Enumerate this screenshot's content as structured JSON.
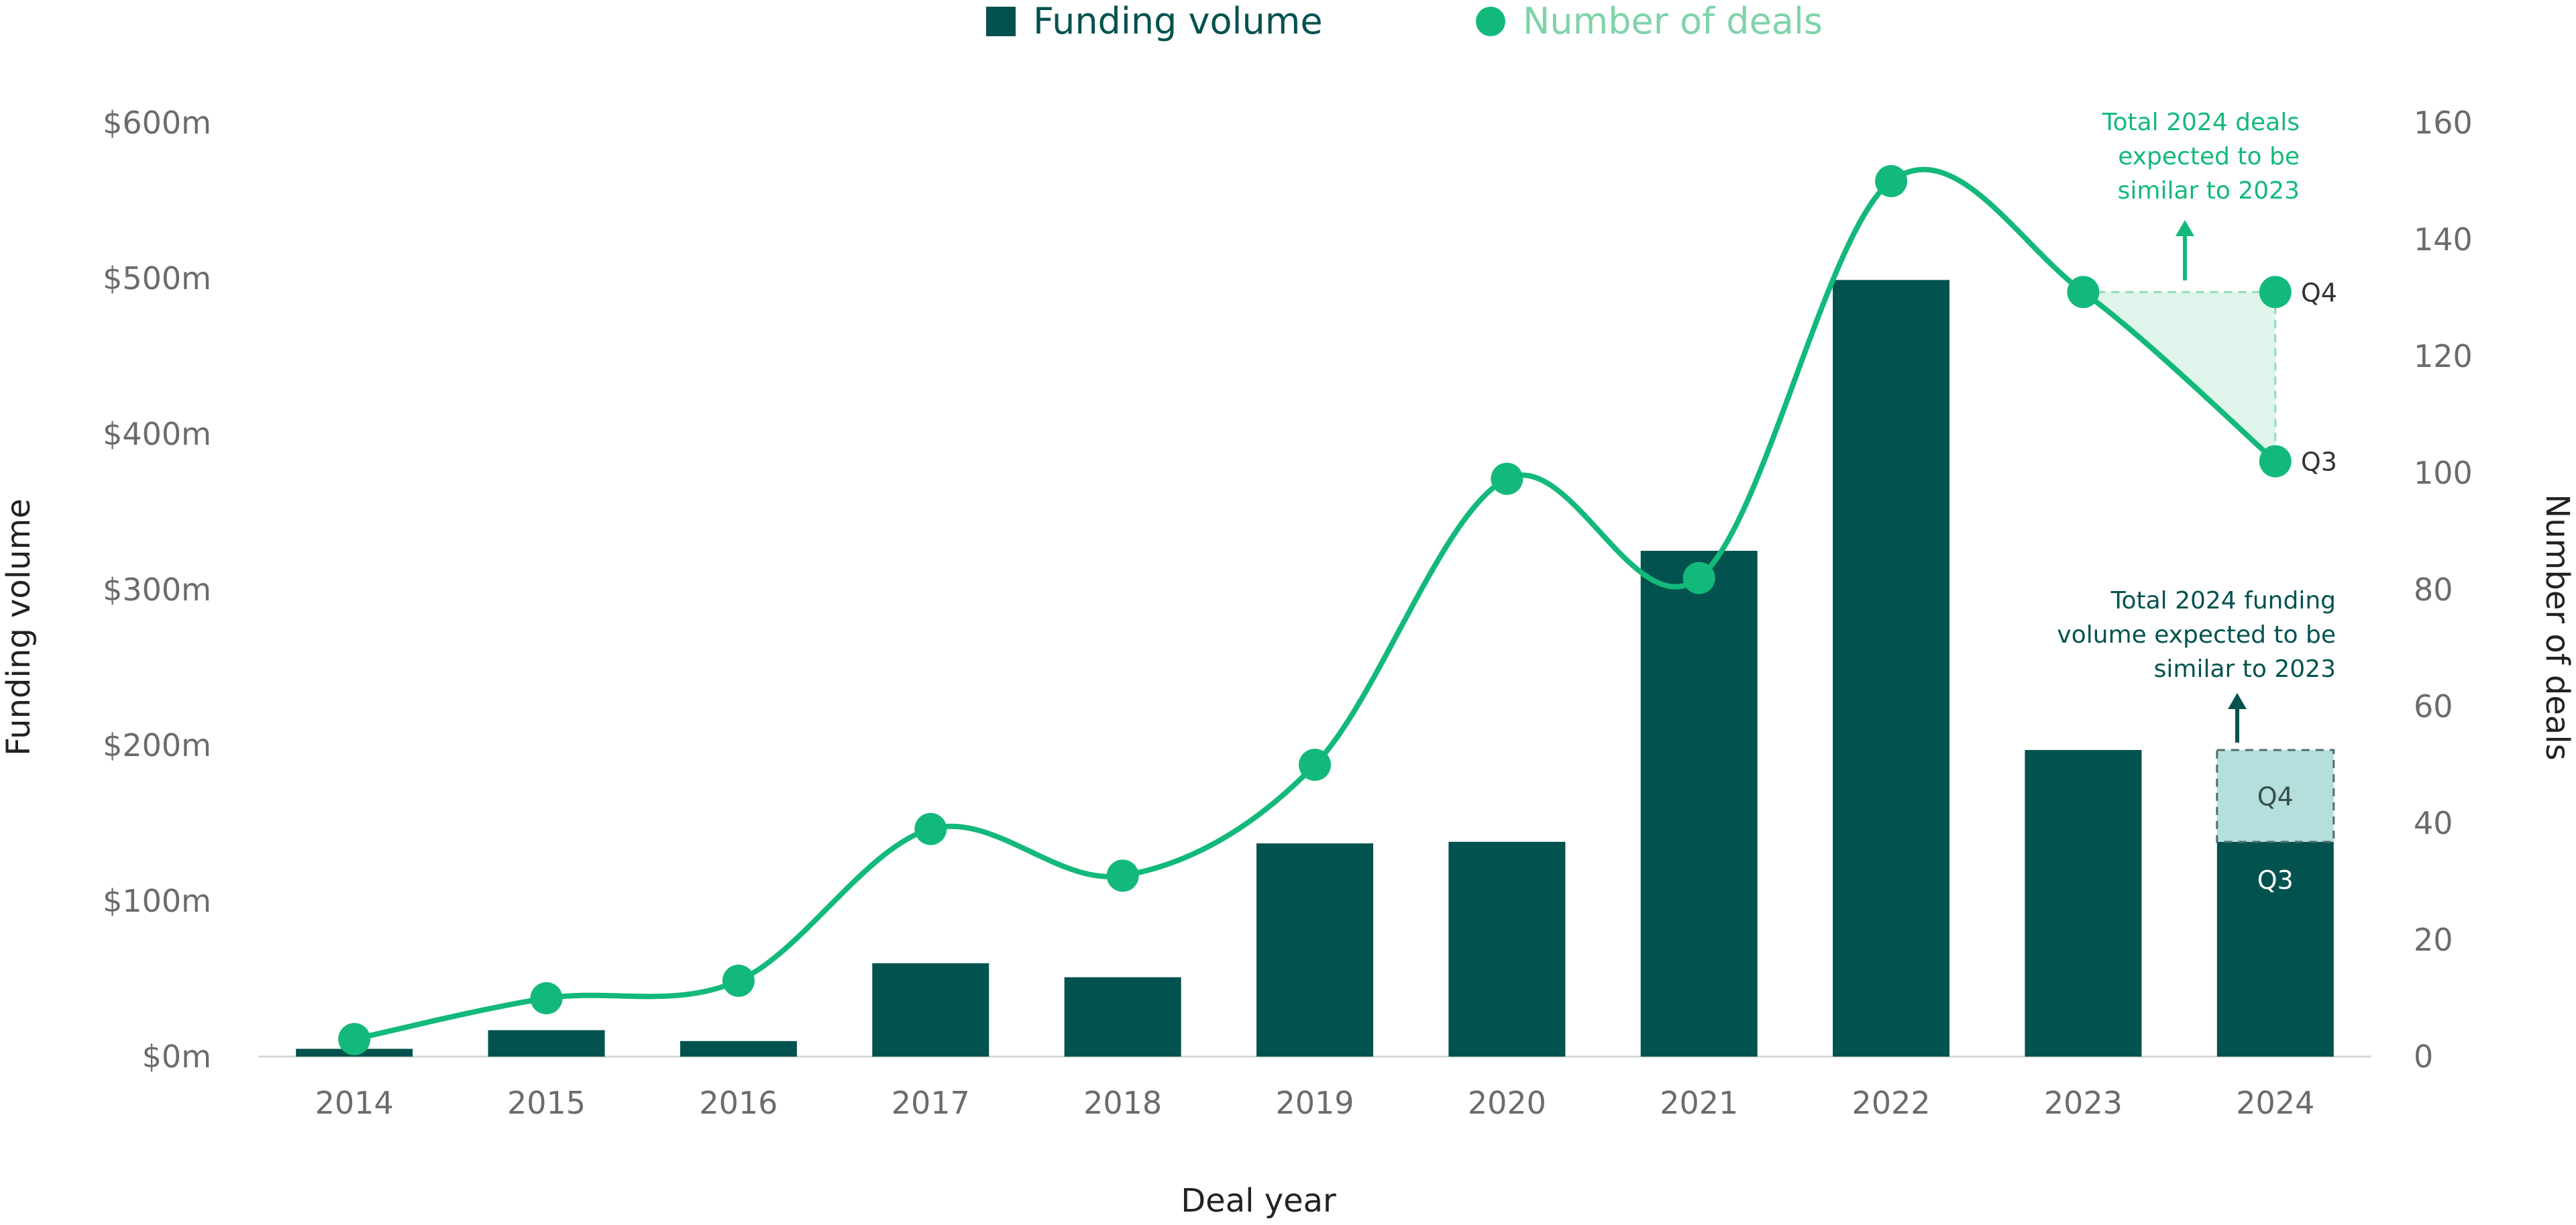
{
  "chart_data": {
    "type": "bar",
    "title": "",
    "xlabel": "Deal year",
    "ylabel": "Funding volume",
    "y2label": "Number of deals",
    "categories": [
      "2014",
      "2015",
      "2016",
      "2017",
      "2018",
      "2019",
      "2020",
      "2021",
      "2022",
      "2023",
      "2024"
    ],
    "ylim": [
      0,
      600
    ],
    "y2lim": [
      0,
      160
    ],
    "y_ticks": [
      {
        "value": 0,
        "label": "$0m"
      },
      {
        "value": 100,
        "label": "$100m"
      },
      {
        "value": 200,
        "label": "$200m"
      },
      {
        "value": 300,
        "label": "$300m"
      },
      {
        "value": 400,
        "label": "$400m"
      },
      {
        "value": 500,
        "label": "$500m"
      },
      {
        "value": 600,
        "label": "$600m"
      }
    ],
    "y2_ticks": [
      {
        "value": 0,
        "label": "0"
      },
      {
        "value": 20,
        "label": "20"
      },
      {
        "value": 40,
        "label": "40"
      },
      {
        "value": 60,
        "label": "60"
      },
      {
        "value": 80,
        "label": "80"
      },
      {
        "value": 100,
        "label": "100"
      },
      {
        "value": 120,
        "label": "120"
      },
      {
        "value": 140,
        "label": "140"
      },
      {
        "value": 160,
        "label": "160"
      }
    ],
    "series": [
      {
        "name": "Funding volume",
        "type": "bar",
        "axis": "left",
        "color": "#02524f",
        "values": [
          5,
          17,
          10,
          60,
          51,
          137,
          138,
          325,
          499,
          197,
          138
        ]
      },
      {
        "name": "Number of deals",
        "type": "line",
        "axis": "right",
        "color": "#13b97a",
        "values": [
          3,
          10,
          13,
          39,
          31,
          50,
          99,
          82,
          150,
          131,
          102
        ]
      }
    ],
    "projection": {
      "category": "2024",
      "bar_q3": 138,
      "bar_q4_total": 197,
      "bar_q3_label": "Q3",
      "bar_q4_label": "Q4",
      "deals_q3": 102,
      "deals_q4_total": 131,
      "deals_q3_label": "Q3",
      "deals_q4_label": "Q4",
      "projection_bar_color": "#b5dfdc",
      "projection_area_color": "#dff4ea"
    },
    "annotations": [
      {
        "id": "deals-note",
        "lines": [
          "Total 2024 deals",
          "expected to be",
          "similar to 2023"
        ],
        "color": "#13b97a"
      },
      {
        "id": "funding-note",
        "lines": [
          "Total 2024 funding",
          "volume expected to be",
          "similar to 2023"
        ],
        "color": "#02524f"
      }
    ],
    "legend": {
      "placement": "top-center",
      "items": [
        {
          "label": "Funding volume",
          "marker": "square",
          "color": "#02524f",
          "text_color": "#02524f"
        },
        {
          "label": "Number of deals",
          "marker": "circle",
          "color": "#13b97a",
          "text_color": "#7fd3a8"
        }
      ]
    },
    "grid": false
  }
}
